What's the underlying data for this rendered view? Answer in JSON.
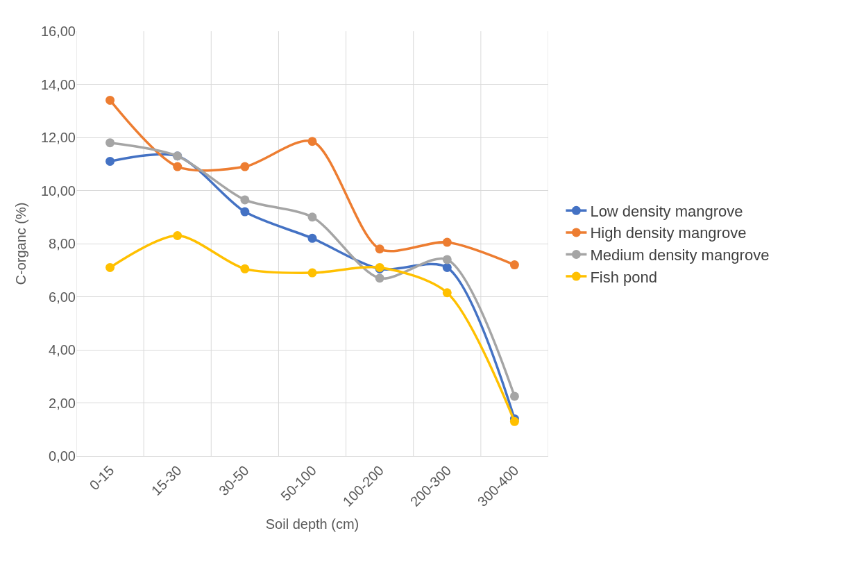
{
  "chart_data": {
    "type": "line",
    "xlabel": "Soil depth (cm)",
    "ylabel": "C-organc (%)",
    "categories": [
      "0-15",
      "15-30",
      "30-50",
      "50-100",
      "100-200",
      "200-300",
      "300-400"
    ],
    "series": [
      {
        "name": "Low density mangrove",
        "color": "#4472c4",
        "values": [
          11.1,
          11.3,
          9.2,
          8.2,
          7.05,
          7.1,
          1.4
        ]
      },
      {
        "name": "High density mangrove",
        "color": "#ed7d31",
        "values": [
          13.4,
          10.9,
          10.9,
          11.85,
          7.8,
          8.05,
          7.2
        ]
      },
      {
        "name": "Medium density mangrove",
        "color": "#a5a5a5",
        "values": [
          11.8,
          11.3,
          9.65,
          9.0,
          6.7,
          7.4,
          2.25
        ]
      },
      {
        "name": "Fish pond",
        "color": "#ffc000",
        "values": [
          7.1,
          8.3,
          7.05,
          6.9,
          7.1,
          6.15,
          1.3
        ]
      }
    ],
    "ylim": [
      0,
      16
    ],
    "yticks": [
      {
        "value": 0,
        "label": "0,00"
      },
      {
        "value": 2,
        "label": "2,00"
      },
      {
        "value": 4,
        "label": "4,00"
      },
      {
        "value": 6,
        "label": "6,00"
      },
      {
        "value": 8,
        "label": "8,00"
      },
      {
        "value": 10,
        "label": "10,00"
      },
      {
        "value": 12,
        "label": "12,00"
      },
      {
        "value": 14,
        "label": "14,00"
      },
      {
        "value": 16,
        "label": "16,00"
      }
    ],
    "grid": true,
    "legend": "right",
    "marker": "circle",
    "line_style": "solid"
  }
}
